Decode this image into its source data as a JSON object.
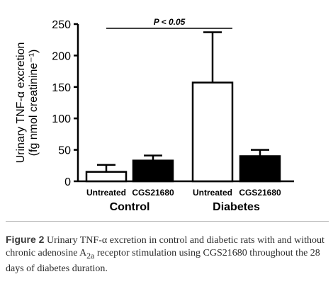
{
  "chart_data": {
    "type": "bar",
    "ylabel_line1": "Urinary TNF-α excretion",
    "ylabel_line2": "(fg nmol creatinine⁻¹)",
    "ylim": [
      0,
      250
    ],
    "yticks": [
      "0",
      "50",
      "100",
      "150",
      "200",
      "250"
    ],
    "groups": [
      {
        "name": "Control",
        "categories": [
          "Untreated",
          "CGS21680"
        ]
      },
      {
        "name": "Diabetes",
        "categories": [
          "Untreated",
          "CGS21680"
        ]
      }
    ],
    "bars": [
      {
        "group": "Control",
        "category": "Untreated",
        "value": 15,
        "error": 11,
        "fill": "white"
      },
      {
        "group": "Control",
        "category": "CGS21680",
        "value": 33,
        "error": 8,
        "fill": "black"
      },
      {
        "group": "Diabetes",
        "category": "Untreated",
        "value": 157,
        "error": 80,
        "fill": "white"
      },
      {
        "group": "Diabetes",
        "category": "CGS21680",
        "value": 40,
        "error": 10,
        "fill": "black"
      }
    ],
    "annotation": {
      "text": "P < 0.05",
      "from": "Control Untreated",
      "to": "Diabetes Untreated"
    },
    "legend": "none",
    "grid": false
  },
  "caption": {
    "label": "Figure 2",
    "text": " Urinary TNF-α excretion in control and diabetic rats with and without chronic adenosine A",
    "sub": "2a",
    "text2": " receptor stimulation using CGS21680 throughout the 28 days of diabetes duration."
  },
  "colors": {
    "axis": "#000000",
    "caption_rule": "#b9b9b9"
  }
}
